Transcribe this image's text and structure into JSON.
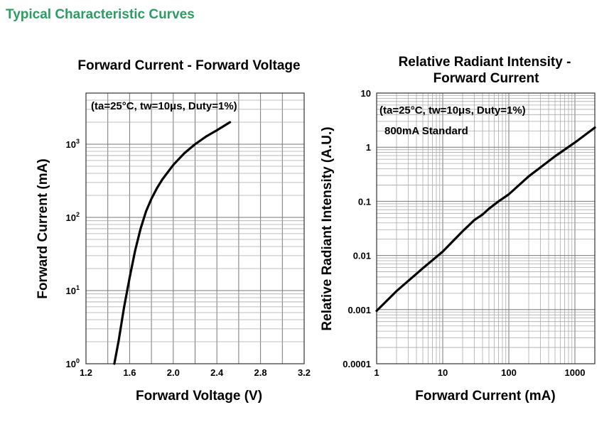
{
  "header": {
    "title": "Typical Characteristic Curves"
  },
  "chart_data": [
    {
      "type": "line",
      "title": "Forward Current - Forward Voltage",
      "xlabel": "Forward Voltage (V)",
      "ylabel": "Forward Current (mA)",
      "annotation": "(ta=25°C, tw=10μs, Duty=1%)",
      "xlim": [
        1.2,
        3.2
      ],
      "ylim": [
        1,
        5000
      ],
      "yscale": "log",
      "grid": true,
      "x_ticks": [
        "1.2",
        "1.6",
        "2.0",
        "2.4",
        "2.8",
        "3.2"
      ],
      "y_ticks": [
        {
          "base": "10",
          "exp": "0"
        },
        {
          "base": "10",
          "exp": "1"
        },
        {
          "base": "10",
          "exp": "2"
        },
        {
          "base": "10",
          "exp": "3"
        }
      ],
      "x": [
        1.46,
        1.5,
        1.55,
        1.6,
        1.65,
        1.7,
        1.75,
        1.8,
        1.85,
        1.9,
        2.0,
        2.1,
        2.2,
        2.3,
        2.4,
        2.52
      ],
      "y": [
        1,
        2.1,
        6,
        15,
        35,
        70,
        120,
        180,
        250,
        330,
        520,
        750,
        1000,
        1270,
        1550,
        2000
      ],
      "colors": {
        "curve": "#000000"
      }
    },
    {
      "type": "line",
      "title": [
        "Relative Radiant Intensity -",
        "Forward Current"
      ],
      "xlabel": "Forward Current (mA)",
      "ylabel": "Relative Radiant Intensity (A.U.)",
      "annotation": "(ta=25°C, tw=10μs, Duty=1%)",
      "annotation2": "800mA Standard",
      "xlim": [
        1,
        2000
      ],
      "ylim": [
        0.0001,
        10
      ],
      "xscale": "log",
      "yscale": "log",
      "grid": true,
      "x_ticks": [
        "1",
        "10",
        "100",
        "1000"
      ],
      "y_ticks": [
        "0.0001",
        "0.001",
        "0.01",
        "0.1",
        "1",
        "10"
      ],
      "x": [
        1,
        2,
        5,
        10,
        20,
        30,
        40,
        50,
        70,
        100,
        200,
        500,
        1000,
        2000
      ],
      "y": [
        0.00095,
        0.0022,
        0.0058,
        0.0118,
        0.028,
        0.045,
        0.057,
        0.073,
        0.1,
        0.135,
        0.29,
        0.68,
        1.22,
        2.3
      ],
      "colors": {
        "curve": "#000000"
      }
    }
  ]
}
